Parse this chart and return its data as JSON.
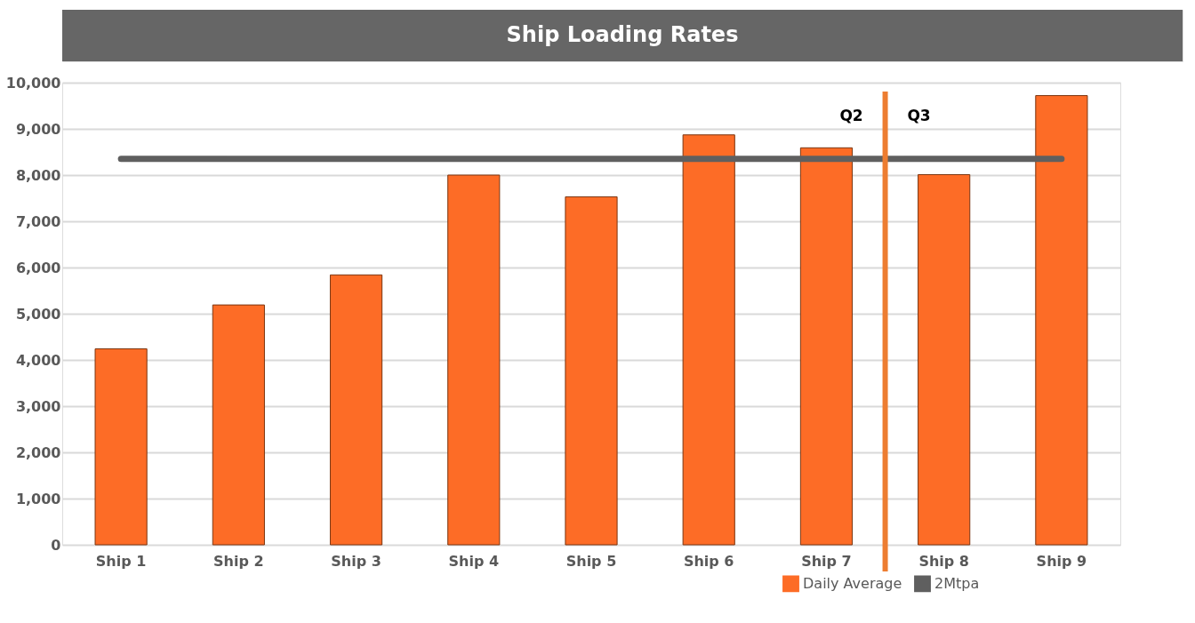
{
  "chart_data": {
    "type": "bar",
    "title": "Ship Loading Rates",
    "categories": [
      "Ship 1",
      "Ship 2",
      "Ship 3",
      "Ship 4",
      "Ship 5",
      "Ship 6",
      "Ship 7",
      "Ship 8",
      "Ship 9"
    ],
    "series": [
      {
        "name": "Daily Average",
        "color": "#fd6c26",
        "values": [
          4240,
          5190,
          5840,
          8000,
          7530,
          8870,
          8590,
          8010,
          9720
        ]
      },
      {
        "name": "2Mtpa",
        "type": "line",
        "color": "#5f5f5f",
        "values": [
          8350,
          8350,
          8350,
          8350,
          8350,
          8350,
          8350,
          8350,
          8350
        ]
      }
    ],
    "ylim": [
      0,
      10000
    ],
    "yticks": [
      {
        "value": 0,
        "label": "0"
      },
      {
        "value": 1000,
        "label": "1,000"
      },
      {
        "value": 2000,
        "label": "2,000"
      },
      {
        "value": 3000,
        "label": "3,000"
      },
      {
        "value": 4000,
        "label": "4,000"
      },
      {
        "value": 5000,
        "label": "5,000"
      },
      {
        "value": 6000,
        "label": "6,000"
      },
      {
        "value": 7000,
        "label": "7,000"
      },
      {
        "value": 8000,
        "label": "8,000"
      },
      {
        "value": 9000,
        "label": "9,000"
      },
      {
        "value": 10000,
        "label": "10,000"
      }
    ],
    "ref_lines": [
      {
        "axis": "x",
        "value": "Ship 8",
        "color": "#ed7d31"
      }
    ],
    "annotations": [
      "Q2",
      "Q3"
    ],
    "grid": "y",
    "legend": "bottom right"
  }
}
